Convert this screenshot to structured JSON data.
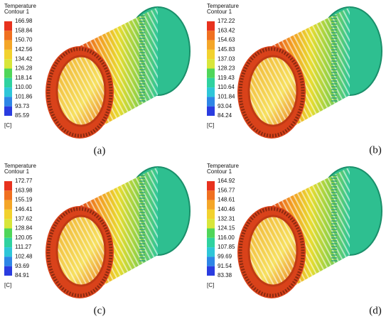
{
  "panels": [
    {
      "legend_title": "Temperature",
      "legend_subtitle": "Contour 1",
      "levels": [
        "166.98",
        "158.84",
        "150.70",
        "142.56",
        "134.42",
        "126.28",
        "118.14",
        "110.00",
        "101.86",
        "93.73",
        "85.59"
      ],
      "unit": "[C]",
      "caption": "(a)"
    },
    {
      "legend_title": "Temperature",
      "legend_subtitle": "Contour 1",
      "levels": [
        "172.22",
        "163.42",
        "154.63",
        "145.83",
        "137.03",
        "128.23",
        "119.43",
        "110.64",
        "101.84",
        "93.04",
        "84.24"
      ],
      "unit": "[C]",
      "caption": "(b)"
    },
    {
      "legend_title": "Temperature",
      "legend_subtitle": "Contour 1",
      "levels": [
        "172.77",
        "163.98",
        "155.19",
        "146.41",
        "137.62",
        "128.84",
        "120.05",
        "111.27",
        "102.48",
        "93.69",
        "84.91"
      ],
      "unit": "[C]",
      "caption": "(c)"
    },
    {
      "legend_title": "Temperature",
      "legend_subtitle": "Contour 1",
      "levels": [
        "164.92",
        "156.77",
        "148.61",
        "140.46",
        "132.31",
        "124.15",
        "116.00",
        "107.85",
        "99.69",
        "91.54",
        "83.38"
      ],
      "unit": "[C]",
      "caption": "(d)"
    }
  ]
}
